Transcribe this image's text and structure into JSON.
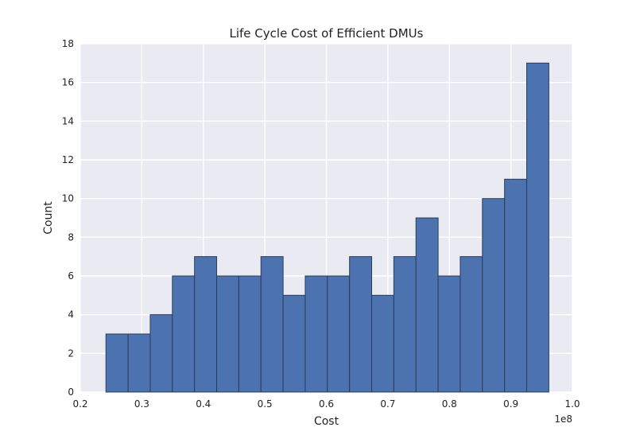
{
  "chart_data": {
    "type": "bar",
    "title": "Life Cycle Cost of Efficient DMUs",
    "xlabel": "Cost",
    "ylabel": "Count",
    "x_offset_label": "1e8",
    "xlim": [
      0.2,
      1.0
    ],
    "ylim": [
      0,
      18
    ],
    "x_ticks": [
      "0.2",
      "0.3",
      "0.4",
      "0.5",
      "0.6",
      "0.7",
      "0.8",
      "0.9",
      "1.0"
    ],
    "y_ticks": [
      "0",
      "2",
      "4",
      "6",
      "8",
      "10",
      "12",
      "14",
      "16",
      "18"
    ],
    "grid": true,
    "bin_start": 0.2417,
    "bin_width": 0.036,
    "counts": [
      3,
      3,
      4,
      6,
      7,
      6,
      6,
      7,
      5,
      6,
      6,
      7,
      5,
      7,
      9,
      6,
      7,
      10,
      11,
      17
    ],
    "colors": {
      "bar_fill": "#4C72B0",
      "bar_edge": "#2b3c58",
      "plot_background": "#EAEAF2",
      "grid": "#ffffff"
    }
  }
}
